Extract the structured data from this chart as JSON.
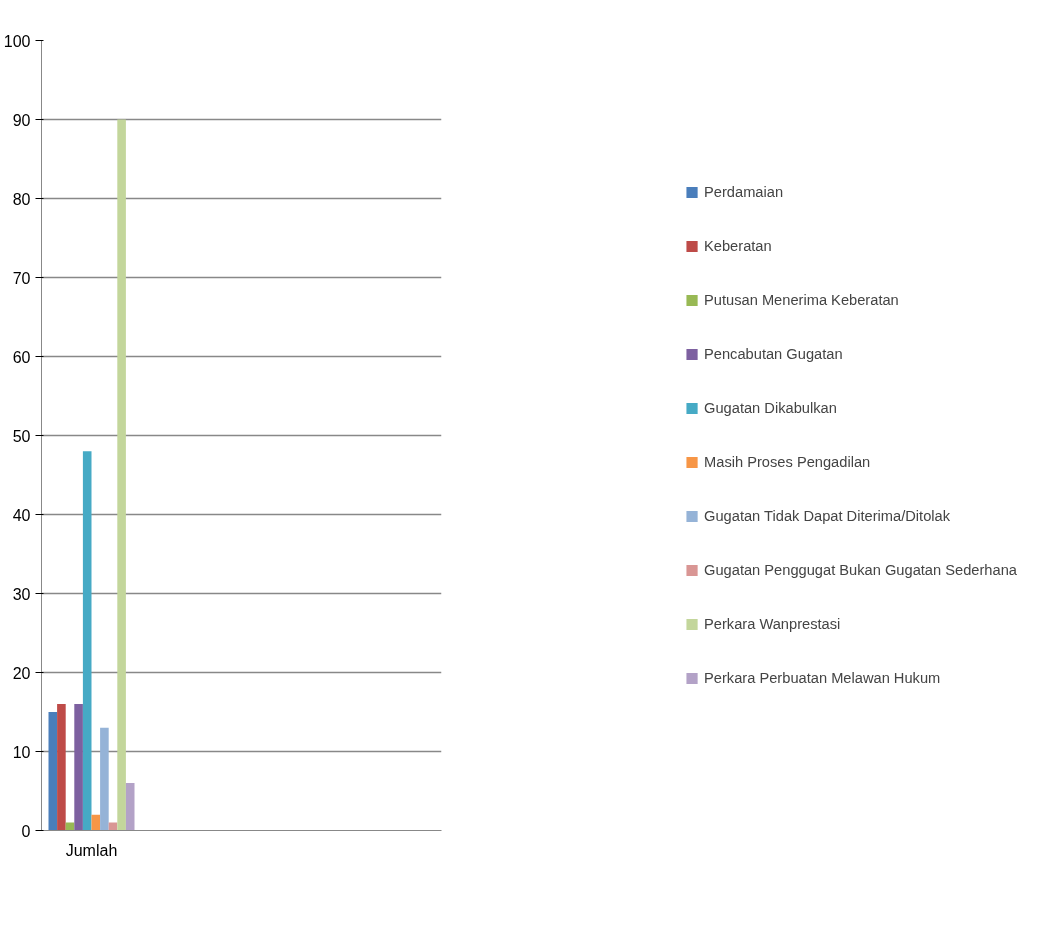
{
  "chart_data": {
    "type": "bar",
    "categories": [
      "Jumlah",
      null,
      null,
      null
    ],
    "series": [
      {
        "name": "Perdamaian",
        "color": "#4a7ebb",
        "values": [
          15,
          null,
          null,
          null
        ]
      },
      {
        "name": "Keberatan",
        "color": "#be4b48",
        "values": [
          16,
          null,
          null,
          null
        ]
      },
      {
        "name": "Putusan Menerima Keberatan",
        "color": "#98b954",
        "values": [
          1,
          null,
          null,
          null
        ]
      },
      {
        "name": "Pencabutan Gugatan",
        "color": "#7d60a0",
        "values": [
          16,
          null,
          null,
          null
        ]
      },
      {
        "name": "Gugatan Dikabulkan",
        "color": "#46aac5",
        "values": [
          48,
          null,
          null,
          null
        ]
      },
      {
        "name": "Masih Proses Pengadilan",
        "color": "#f79646",
        "values": [
          2,
          null,
          null,
          null
        ]
      },
      {
        "name": "Gugatan Tidak Dapat Diterima/Ditolak",
        "color": "#95b3d7",
        "values": [
          13,
          null,
          null,
          null
        ]
      },
      {
        "name": "Gugatan Penggugat Bukan Gugatan Sederhana",
        "color": "#d99694",
        "values": [
          1,
          null,
          null,
          null
        ]
      },
      {
        "name": "Perkara Wanprestasi",
        "color": "#c3d69b",
        "values": [
          90,
          null,
          null,
          null
        ]
      },
      {
        "name": "Perkara Perbuatan Melawan Hukum",
        "color": "#b3a2c7",
        "values": [
          6,
          null,
          null,
          null
        ]
      }
    ],
    "ylim": [
      0,
      100
    ],
    "yticks": [
      0,
      10,
      20,
      30,
      40,
      50,
      60,
      70,
      80,
      90,
      100
    ],
    "grid": "y",
    "legend": "right"
  }
}
